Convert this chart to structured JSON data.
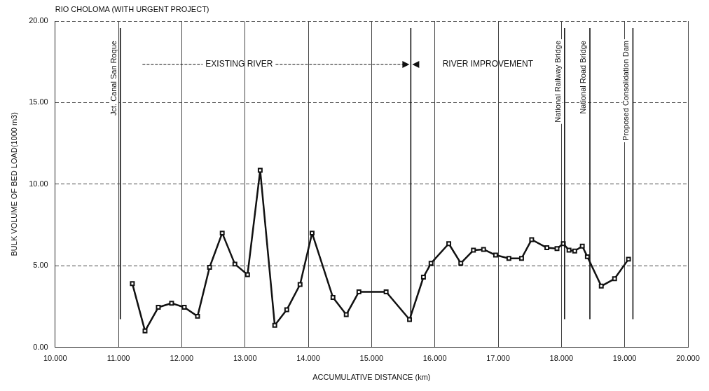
{
  "chart_data": {
    "type": "line",
    "title": "RIO CHOLOMA (WITH URGENT PROJECT)",
    "xlabel": "ACCUMULATIVE DISTANCE (km)",
    "ylabel": "BULK VOLUME OF BED LOAD(1000 m3)",
    "x": [
      11.22,
      11.42,
      11.63,
      11.84,
      12.04,
      12.25,
      12.44,
      12.64,
      12.84,
      13.04,
      13.24,
      13.47,
      13.66,
      13.87,
      14.06,
      14.39,
      14.6,
      14.8,
      15.23,
      15.6,
      15.82,
      15.94,
      16.22,
      16.41,
      16.61,
      16.77,
      16.96,
      17.17,
      17.37,
      17.53,
      17.77,
      17.93,
      18.03,
      18.12,
      18.21,
      18.33,
      18.41,
      18.63,
      18.84,
      19.06
    ],
    "series": [
      {
        "color": "#111111",
        "values": [
          3.9,
          1.0,
          2.45,
          2.7,
          2.45,
          1.9,
          4.9,
          7.0,
          5.1,
          4.45,
          10.85,
          1.35,
          2.3,
          3.85,
          7.0,
          3.05,
          2.0,
          3.4,
          3.4,
          1.7,
          4.3,
          5.15,
          6.35,
          5.15,
          5.95,
          6.0,
          5.65,
          5.45,
          5.45,
          6.6,
          6.1,
          6.05,
          6.35,
          5.95,
          5.9,
          6.2,
          5.55,
          3.75,
          4.2,
          5.4
        ]
      }
    ],
    "xlim": [
      10,
      20
    ],
    "xticks": [
      {
        "value": 10,
        "label": "10.000"
      },
      {
        "value": 11,
        "label": "11.000"
      },
      {
        "value": 12,
        "label": "12.000"
      },
      {
        "value": 13,
        "label": "13.000"
      },
      {
        "value": 14,
        "label": "14.000"
      },
      {
        "value": 15,
        "label": "15.000"
      },
      {
        "value": 16,
        "label": "16.000"
      },
      {
        "value": 17,
        "label": "17.000"
      },
      {
        "value": 18,
        "label": "18.000"
      },
      {
        "value": 19,
        "label": "19.000"
      },
      {
        "value": 20,
        "label": "20.000"
      }
    ],
    "ylim": [
      0,
      20
    ],
    "yticks": [
      {
        "value": 0,
        "label": "0.00"
      },
      {
        "value": 5,
        "label": "5.00"
      },
      {
        "value": 10,
        "label": "10.00"
      },
      {
        "value": 15,
        "label": "15.00"
      },
      {
        "value": 20,
        "label": "20.00"
      }
    ],
    "grid": true,
    "marker": "square",
    "line_style": "solid",
    "legend": false,
    "ref_lines": [
      {
        "axis": "x",
        "value": 15.62,
        "label": null
      },
      {
        "axis": "x",
        "value": 11.03,
        "label": "Jct. Canal San Roque"
      },
      {
        "axis": "x",
        "value": 18.05,
        "label": "National Railway Bridge"
      },
      {
        "axis": "x",
        "value": 18.45,
        "label": "National Road Bridge"
      },
      {
        "axis": "x",
        "value": 19.13,
        "label": "Proposed Consolidation Dam"
      }
    ],
    "annotations": [
      "EXISTING RIVER",
      "RIVER IMPROVEMENT"
    ]
  }
}
